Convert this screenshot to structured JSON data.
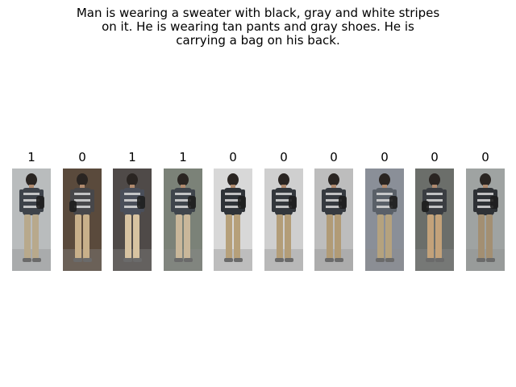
{
  "caption": {
    "lines": [
      "Man is wearing a sweater with black, gray and white stripes",
      "on it. He is wearing tan pants and gray shoes. He is",
      "carrying a bag on his back."
    ]
  },
  "gallery": {
    "items": [
      {
        "label": "1",
        "image": "person-walking-photo",
        "bg": "#b9bcbd",
        "shirt": "#3e434a",
        "pants": "#b8a98c",
        "facing": "side"
      },
      {
        "label": "0",
        "image": "person-walking-photo",
        "bg": "#5a4a3c",
        "shirt": "#47474a",
        "pants": "#c8b08a",
        "facing": "front"
      },
      {
        "label": "1",
        "image": "person-walking-photo",
        "bg": "#4f4a48",
        "shirt": "#4a4f5a",
        "pants": "#d7c3a1",
        "facing": "back"
      },
      {
        "label": "1",
        "image": "person-walking-photo",
        "bg": "#7b8278",
        "shirt": "#3f454c",
        "pants": "#c9b79a",
        "facing": "back"
      },
      {
        "label": "0",
        "image": "person-walking-photo",
        "bg": "#d8d8d8",
        "shirt": "#2f3338",
        "pants": "#b6a07a",
        "facing": "side"
      },
      {
        "label": "0",
        "image": "person-walking-photo",
        "bg": "#cfcfcf",
        "shirt": "#33373c",
        "pants": "#b39d78",
        "facing": "side"
      },
      {
        "label": "0",
        "image": "person-walking-photo",
        "bg": "#bdbdbd",
        "shirt": "#363a40",
        "pants": "#b19b76",
        "facing": "side"
      },
      {
        "label": "0",
        "image": "person-walking-photo",
        "bg": "#8a8f98",
        "shirt": "#5a6068",
        "pants": "#b5a27e",
        "facing": "back"
      },
      {
        "label": "0",
        "image": "person-walking-photo",
        "bg": "#6b6e6a",
        "shirt": "#3a3d42",
        "pants": "#c3a27a",
        "facing": "front"
      },
      {
        "label": "0",
        "image": "person-walking-photo",
        "bg": "#9fa3a2",
        "shirt": "#2e3135",
        "pants": "#a38f72",
        "facing": "back"
      }
    ]
  }
}
